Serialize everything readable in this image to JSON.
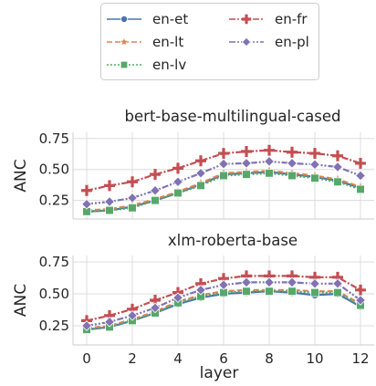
{
  "chart_data": [
    {
      "type": "line",
      "title": "bert-base-multilingual-cased",
      "xlabel": "",
      "ylabel": "ANC",
      "xlim": [
        -0.6,
        12.6
      ],
      "ylim": [
        0.1,
        0.8
      ],
      "xticks": [
        "0",
        "2",
        "4",
        "6",
        "8",
        "10",
        "12"
      ],
      "yticks": [
        "0.25",
        "0.50",
        "0.75"
      ],
      "grid": true,
      "x": [
        0,
        1,
        2,
        3,
        4,
        5,
        6,
        7,
        8,
        9,
        10,
        11,
        12
      ],
      "series": [
        {
          "name": "en-et",
          "values": [
            0.16,
            0.17,
            0.2,
            0.25,
            0.31,
            0.38,
            0.46,
            0.47,
            0.48,
            0.46,
            0.44,
            0.41,
            0.35
          ]
        },
        {
          "name": "en-lt",
          "values": [
            0.17,
            0.18,
            0.21,
            0.26,
            0.32,
            0.39,
            0.47,
            0.48,
            0.49,
            0.47,
            0.45,
            0.42,
            0.36
          ]
        },
        {
          "name": "en-lv",
          "values": [
            0.16,
            0.17,
            0.19,
            0.25,
            0.31,
            0.37,
            0.45,
            0.46,
            0.47,
            0.45,
            0.43,
            0.4,
            0.34
          ]
        },
        {
          "name": "en-fr",
          "values": [
            0.33,
            0.37,
            0.4,
            0.46,
            0.51,
            0.57,
            0.63,
            0.645,
            0.655,
            0.64,
            0.63,
            0.61,
            0.55
          ]
        },
        {
          "name": "en-pl",
          "values": [
            0.22,
            0.24,
            0.27,
            0.33,
            0.4,
            0.47,
            0.545,
            0.55,
            0.565,
            0.55,
            0.54,
            0.52,
            0.45
          ]
        }
      ]
    },
    {
      "type": "line",
      "title": "xlm-roberta-base",
      "xlabel": "layer",
      "ylabel": "ANC",
      "xlim": [
        -0.6,
        12.6
      ],
      "ylim": [
        0.1,
        0.8
      ],
      "xticks": [
        "0",
        "2",
        "4",
        "6",
        "8",
        "10",
        "12"
      ],
      "yticks": [
        "0.25",
        "0.50",
        "0.75"
      ],
      "grid": true,
      "x": [
        0,
        1,
        2,
        3,
        4,
        5,
        6,
        7,
        8,
        9,
        10,
        11,
        12
      ],
      "series": [
        {
          "name": "en-et",
          "values": [
            0.22,
            0.24,
            0.29,
            0.35,
            0.42,
            0.47,
            0.5,
            0.51,
            0.52,
            0.51,
            0.49,
            0.5,
            0.4
          ]
        },
        {
          "name": "en-lt",
          "values": [
            0.23,
            0.25,
            0.3,
            0.36,
            0.44,
            0.49,
            0.52,
            0.53,
            0.53,
            0.53,
            0.52,
            0.52,
            0.42
          ]
        },
        {
          "name": "en-lv",
          "values": [
            0.22,
            0.24,
            0.29,
            0.35,
            0.43,
            0.48,
            0.51,
            0.52,
            0.52,
            0.52,
            0.51,
            0.51,
            0.41
          ]
        },
        {
          "name": "en-fr",
          "values": [
            0.29,
            0.33,
            0.38,
            0.45,
            0.51,
            0.58,
            0.62,
            0.64,
            0.64,
            0.64,
            0.63,
            0.63,
            0.53
          ]
        },
        {
          "name": "en-pl",
          "values": [
            0.25,
            0.28,
            0.33,
            0.39,
            0.47,
            0.53,
            0.57,
            0.59,
            0.59,
            0.59,
            0.58,
            0.58,
            0.45
          ]
        }
      ]
    }
  ],
  "legend": {
    "placement": "top-center",
    "entries": [
      {
        "name": "en-et",
        "color": "#4C72B0",
        "marker": "circle",
        "dash": "solid"
      },
      {
        "name": "en-lt",
        "color": "#DD8452",
        "marker": "star",
        "dash": "dashed"
      },
      {
        "name": "en-lv",
        "color": "#55A868",
        "marker": "square",
        "dash": "dotted"
      },
      {
        "name": "en-fr",
        "color": "#C44E52",
        "marker": "plus",
        "dash": "dashdot"
      },
      {
        "name": "en-pl",
        "color": "#8172B3",
        "marker": "diamond",
        "dash": "dashdotdot"
      }
    ]
  }
}
